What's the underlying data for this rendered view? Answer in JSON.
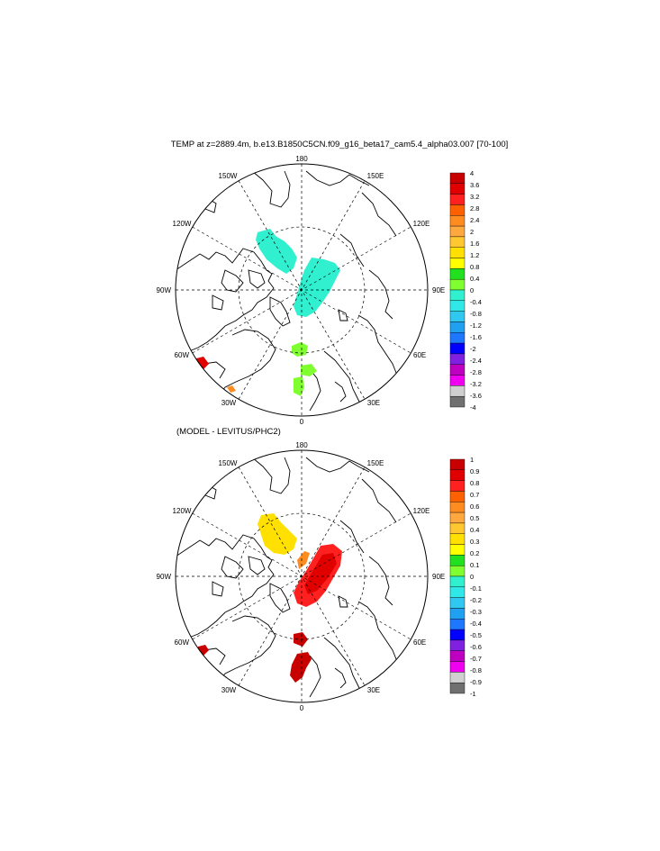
{
  "title": "TEMP at z=2889.4m, b.e13.B1850C5CN.f09_g16_beta17_cam5.4_alpha03.007 [70-100]",
  "subtitle": "(MODEL - LEVITUS/PHC2)",
  "longitude_labels": [
    {
      "id": "180",
      "text": "180"
    },
    {
      "id": "150e",
      "text": "150E"
    },
    {
      "id": "120e",
      "text": "120E"
    },
    {
      "id": "90e",
      "text": "90E"
    },
    {
      "id": "60e",
      "text": "60E"
    },
    {
      "id": "30e",
      "text": "30E"
    },
    {
      "id": "0",
      "text": "0"
    },
    {
      "id": "30w",
      "text": "30W"
    },
    {
      "id": "60w",
      "text": "60W"
    },
    {
      "id": "90w",
      "text": "90W"
    },
    {
      "id": "120w",
      "text": "120W"
    },
    {
      "id": "150w",
      "text": "150W"
    }
  ],
  "legend_top": {
    "labels": [
      "4",
      "3.6",
      "3.2",
      "2.8",
      "2.4",
      "2",
      "1.6",
      "1.2",
      "0.8",
      "0.4",
      "0",
      "-0.4",
      "-0.8",
      "-1.2",
      "-1.6",
      "-2",
      "-2.4",
      "-2.8",
      "-3.2",
      "-3.6",
      "-4"
    ],
    "colors": [
      "#c80000",
      "#e00000",
      "#ff2020",
      "#ff6000",
      "#ff8c20",
      "#ffa840",
      "#ffc830",
      "#ffe000",
      "#ffff00",
      "#20e020",
      "#80ff30",
      "#30f0d0",
      "#30e8e8",
      "#30c8f0",
      "#20a0f0",
      "#1e78ff",
      "#0000ff",
      "#8020e0",
      "#c000c0",
      "#f000f0",
      "#d0d0d0",
      "#707070"
    ]
  },
  "legend_bottom": {
    "labels": [
      "1",
      "0.9",
      "0.8",
      "0.7",
      "0.6",
      "0.5",
      "0.4",
      "0.3",
      "0.2",
      "0.1",
      "0",
      "-0.1",
      "-0.2",
      "-0.3",
      "-0.4",
      "-0.5",
      "-0.6",
      "-0.7",
      "-0.8",
      "-0.9",
      "-1"
    ],
    "colors": [
      "#c80000",
      "#e00000",
      "#ff2020",
      "#ff6000",
      "#ff8c20",
      "#ffa840",
      "#ffc830",
      "#ffe000",
      "#ffff00",
      "#20e020",
      "#80ff30",
      "#30f0d0",
      "#30e8e8",
      "#30c8f0",
      "#20a0f0",
      "#1e78ff",
      "#0000ff",
      "#8020e0",
      "#c000c0",
      "#f000f0",
      "#d0d0d0",
      "#707070"
    ]
  }
}
